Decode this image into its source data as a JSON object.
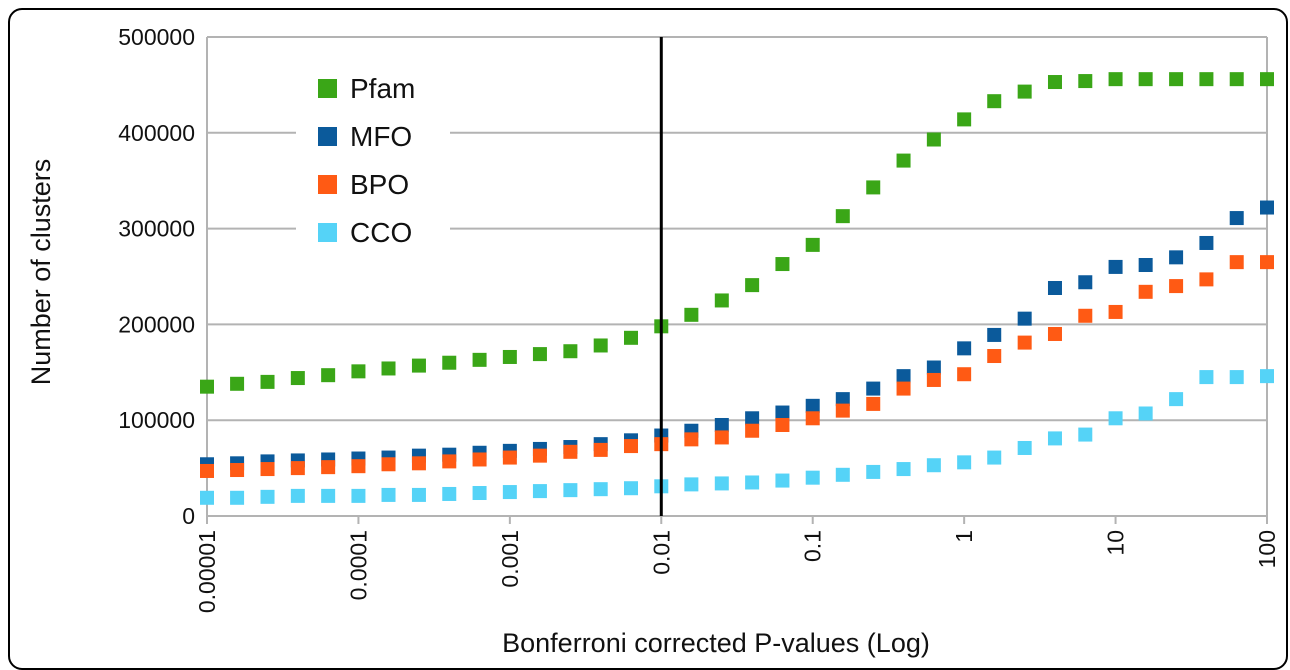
{
  "chart_data": {
    "type": "scatter",
    "title": "",
    "xlabel": "Bonferroni corrected P-values (Log)",
    "ylabel": "Number of clusters",
    "x_scale": "log",
    "xlim": [
      1e-05,
      100
    ],
    "ylim": [
      0,
      500000
    ],
    "x_tick_labels": [
      "0.00001",
      "0.0001",
      "0.001",
      "0.01",
      "0.1",
      "1",
      "10",
      "100"
    ],
    "y_tick_labels": [
      "0",
      "100000",
      "200000",
      "300000",
      "400000",
      "500000"
    ],
    "grid": "horizontal",
    "legend_position": "top-left",
    "reference_line_x": 0.01,
    "x": [
      1e-05,
      1.58e-05,
      2.51e-05,
      3.98e-05,
      6.31e-05,
      0.0001,
      0.000158,
      0.000251,
      0.000398,
      0.000631,
      0.001,
      0.00158,
      0.00251,
      0.00398,
      0.00631,
      0.01,
      0.0158,
      0.0251,
      0.0398,
      0.0631,
      0.1,
      0.158,
      0.251,
      0.398,
      0.631,
      1,
      1.58,
      2.51,
      3.98,
      6.31,
      10,
      15.8,
      25.1,
      39.8,
      63.1,
      100
    ],
    "series": [
      {
        "name": "Pfam",
        "color": "#3aa617",
        "values": [
          135000,
          138000,
          140000,
          144000,
          147000,
          151000,
          154000,
          157000,
          160000,
          163000,
          166000,
          169000,
          172000,
          178000,
          186000,
          198000,
          210000,
          225000,
          241000,
          263000,
          283000,
          313000,
          343000,
          371000,
          393000,
          414000,
          433000,
          443000,
          453000,
          454000,
          456000,
          456000,
          456000,
          456000,
          456000,
          456000
        ]
      },
      {
        "name": "MFO",
        "color": "#0b5a9b",
        "values": [
          54000,
          55000,
          57000,
          58000,
          59000,
          60000,
          61000,
          63000,
          64000,
          66000,
          68000,
          70000,
          72000,
          75000,
          79000,
          84000,
          89000,
          95000,
          102000,
          108000,
          115000,
          122000,
          133000,
          146000,
          155000,
          175000,
          189000,
          206000,
          238000,
          244000,
          260000,
          262000,
          270000,
          285000,
          311000,
          322000
        ]
      },
      {
        "name": "BPO",
        "color": "#ff5a14",
        "values": [
          47000,
          48000,
          49000,
          50000,
          51000,
          52000,
          54000,
          55000,
          57000,
          59000,
          61000,
          63000,
          67000,
          69000,
          73000,
          75000,
          80000,
          82000,
          89000,
          95000,
          102000,
          110000,
          117000,
          133000,
          142000,
          148000,
          167000,
          181000,
          190000,
          209000,
          213000,
          234000,
          240000,
          247000,
          265000,
          265000
        ]
      },
      {
        "name": "CCO",
        "color": "#55d3f7",
        "values": [
          19000,
          19000,
          20000,
          21000,
          21000,
          21000,
          22000,
          22000,
          23000,
          24000,
          25000,
          26000,
          27000,
          28000,
          29000,
          31000,
          33000,
          34000,
          35000,
          37000,
          40000,
          43000,
          46000,
          49000,
          53000,
          56000,
          61000,
          71000,
          81000,
          85000,
          102000,
          107000,
          122000,
          145000,
          145000,
          146000
        ]
      }
    ]
  }
}
